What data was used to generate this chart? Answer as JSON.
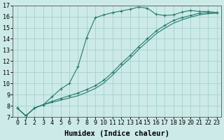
{
  "bg_color": "#cceae8",
  "grid_color": "#aad4d0",
  "line_color": "#267a6e",
  "xlabel": "Humidex (Indice chaleur)",
  "xlabel_fontsize": 7.5,
  "tick_fontsize": 6,
  "xlim": [
    -0.5,
    23.5
  ],
  "ylim": [
    7,
    17
  ],
  "yticks": [
    7,
    8,
    9,
    10,
    11,
    12,
    13,
    14,
    15,
    16,
    17
  ],
  "xticks": [
    0,
    1,
    2,
    3,
    4,
    5,
    6,
    7,
    8,
    9,
    10,
    11,
    12,
    13,
    14,
    15,
    16,
    17,
    18,
    19,
    20,
    21,
    22,
    23
  ],
  "line1_x": [
    0,
    1,
    2,
    3,
    4,
    5,
    6,
    7,
    8,
    9,
    10,
    11,
    12,
    13,
    14,
    15,
    16,
    17,
    18,
    19,
    20,
    21,
    22,
    23
  ],
  "line1_y": [
    7.8,
    7.1,
    7.8,
    8.1,
    8.8,
    9.5,
    10.0,
    11.5,
    14.1,
    15.9,
    16.15,
    16.35,
    16.5,
    16.65,
    16.85,
    16.75,
    16.2,
    16.1,
    16.15,
    16.4,
    16.55,
    16.45,
    16.45,
    16.35
  ],
  "line2_x": [
    0,
    1,
    2,
    3,
    4,
    5,
    6,
    7,
    8,
    9,
    10,
    11,
    12,
    13,
    14,
    15,
    16,
    17,
    18,
    19,
    20,
    21,
    22,
    23
  ],
  "line2_y": [
    7.8,
    7.1,
    7.8,
    8.1,
    8.4,
    8.65,
    8.9,
    9.15,
    9.45,
    9.8,
    10.3,
    11.0,
    11.8,
    12.5,
    13.3,
    14.0,
    14.7,
    15.2,
    15.65,
    15.9,
    16.1,
    16.3,
    16.35,
    16.35
  ],
  "line3_x": [
    0,
    1,
    2,
    3,
    4,
    5,
    6,
    7,
    8,
    9,
    10,
    11,
    12,
    13,
    14,
    15,
    16,
    17,
    18,
    19,
    20,
    21,
    22,
    23
  ],
  "line3_y": [
    7.8,
    7.1,
    7.8,
    8.1,
    8.3,
    8.5,
    8.7,
    8.9,
    9.2,
    9.55,
    10.05,
    10.75,
    11.55,
    12.25,
    13.05,
    13.75,
    14.45,
    14.95,
    15.4,
    15.7,
    15.95,
    16.15,
    16.25,
    16.3
  ]
}
